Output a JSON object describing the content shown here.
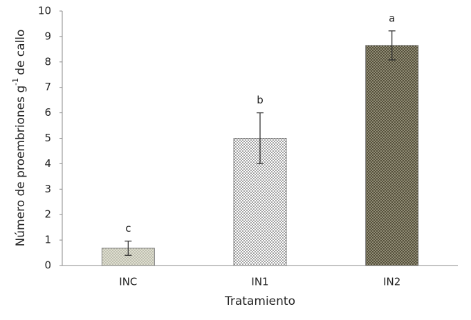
{
  "chart_data": {
    "type": "bar",
    "categories": [
      "INC",
      "IN1",
      "IN2"
    ],
    "values": [
      0.68,
      5.0,
      8.65
    ],
    "errors": [
      0.28,
      1.0,
      0.57
    ],
    "annotations": [
      "c",
      "b",
      "a"
    ],
    "colors": [
      "#deded0",
      "#ffffff",
      "#55503b"
    ],
    "xlabel": "Tratamiento",
    "ylabel_parts": [
      "Número de proembriones g",
      "-1",
      "de callo"
    ],
    "ylim": [
      0,
      10
    ],
    "yticks": [
      0,
      1,
      2,
      3,
      4,
      5,
      6,
      7,
      8,
      9,
      10
    ]
  }
}
